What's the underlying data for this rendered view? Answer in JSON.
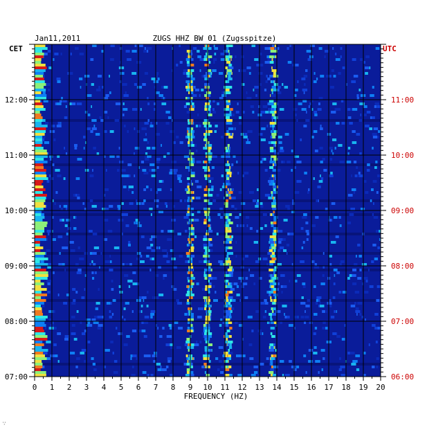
{
  "chart_data": {
    "type": "heatmap",
    "title": "ZUGS HHZ BW 01 (Zugsspitze)",
    "date": "Jan11,2011",
    "xlabel": "FREQUENCY (HZ)",
    "xlim": [
      0,
      20
    ],
    "x_ticks": [
      "0",
      "1",
      "2",
      "3",
      "4",
      "5",
      "6",
      "7",
      "8",
      "9",
      "10",
      "11",
      "12",
      "13",
      "14",
      "15",
      "16",
      "17",
      "18",
      "19",
      "20"
    ],
    "left_axis": {
      "label": "CET",
      "ticks": [
        {
          "hour": 7,
          "label": "07:00"
        },
        {
          "hour": 8,
          "label": "08:00"
        },
        {
          "hour": 9,
          "label": "09:00"
        },
        {
          "hour": 10,
          "label": "10:00"
        },
        {
          "hour": 11,
          "label": "11:00"
        },
        {
          "hour": 12,
          "label": "12:00"
        }
      ],
      "range_hours": [
        7,
        13
      ]
    },
    "right_axis": {
      "label": "UTC",
      "ticks": [
        {
          "hour": 7,
          "label": "06:00"
        },
        {
          "hour": 8,
          "label": "07:00"
        },
        {
          "hour": 9,
          "label": "08:00"
        },
        {
          "hour": 10,
          "label": "09:00"
        },
        {
          "hour": 11,
          "label": "10:00"
        },
        {
          "hour": 12,
          "label": "11:00"
        }
      ]
    },
    "spectral_lines_hz": [
      9.0,
      10.0,
      11.2,
      13.8
    ],
    "colors": {
      "background": "#0a1c9a",
      "grid": "#000000",
      "utc_label": "#cc0000",
      "cet_label": "#000000"
    }
  },
  "footer_mark": "∵"
}
